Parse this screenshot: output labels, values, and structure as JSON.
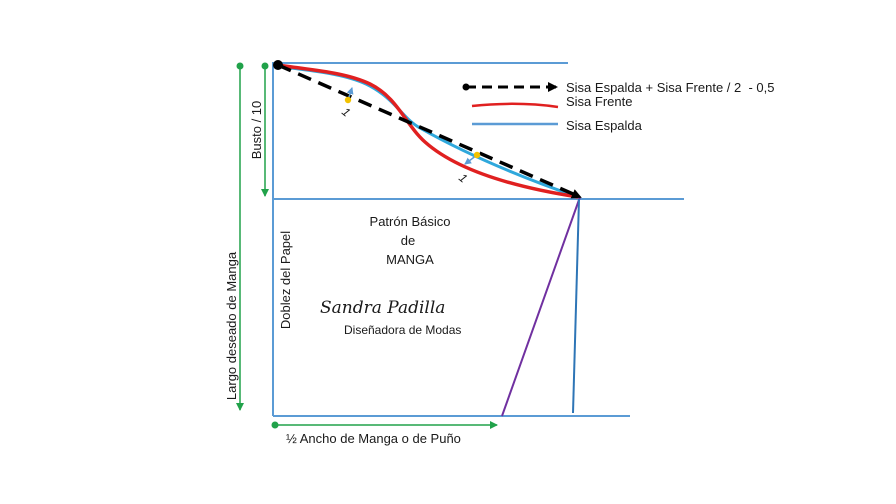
{
  "legend": {
    "dashed": "Sisa Espalda + Sisa Frente / 2  - 0,5",
    "red": "Sisa Frente",
    "blue": "Sisa Espalda"
  },
  "labels": {
    "busto": "Busto / 10",
    "largo": "Largo deseado de Manga",
    "doblez": "Doblez del Papel",
    "ancho": "½ Ancho de Manga o de Puño",
    "mark_1": "1",
    "mark_2": "1"
  },
  "title": {
    "line1": "Patrón Básico",
    "line2": "de",
    "line3": "MANGA"
  },
  "author": {
    "name": "Sandra Padilla",
    "role": "Diseñadora de Modas"
  },
  "colors": {
    "pattern_line": "#5b9bd5",
    "front_curve": "#e02020",
    "back_curve": "#2fa8dc",
    "dashed": "#000000",
    "measure": "#21a24a",
    "diagonal": "#7030a0",
    "vertical": "#2e75b6"
  }
}
